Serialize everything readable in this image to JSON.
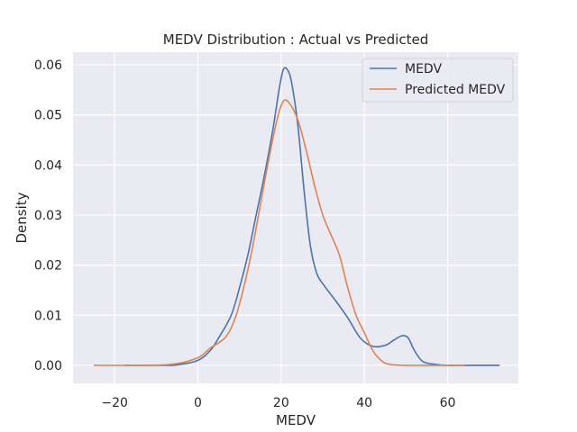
{
  "chart_data": {
    "type": "line",
    "title": "MEDV Distribution : Actual vs Predicted",
    "xlabel": "MEDV",
    "ylabel": "Density",
    "xlim": [
      -30,
      77
    ],
    "ylim": [
      -0.0036,
      0.0625
    ],
    "xticks": [
      -20,
      0,
      20,
      40,
      60
    ],
    "xtick_labels": [
      "−20",
      "0",
      "20",
      "40",
      "60"
    ],
    "yticks": [
      0.0,
      0.01,
      0.02,
      0.03,
      0.04,
      0.05,
      0.06
    ],
    "ytick_labels": [
      "0.00",
      "0.01",
      "0.02",
      "0.03",
      "0.04",
      "0.05",
      "0.06"
    ],
    "grid": true,
    "legend_position": "top-right",
    "series": [
      {
        "name": "MEDV",
        "color": "#4c72b0",
        "x": [
          -17.5,
          -10,
          -5,
          0,
          3,
          5,
          8,
          10,
          12,
          14,
          16,
          18,
          19.5,
          20.5,
          21.5,
          22.5,
          24,
          25.5,
          27,
          28.5,
          30,
          33,
          36,
          39,
          42,
          45,
          47,
          49,
          50.5,
          52,
          54,
          57,
          60,
          65,
          72.5
        ],
        "y": [
          0.0,
          0.0,
          0.0001,
          0.001,
          0.003,
          0.0055,
          0.01,
          0.0155,
          0.022,
          0.03,
          0.038,
          0.047,
          0.055,
          0.059,
          0.059,
          0.0565,
          0.048,
          0.035,
          0.024,
          0.0185,
          0.0163,
          0.013,
          0.0095,
          0.0055,
          0.0038,
          0.004,
          0.005,
          0.0059,
          0.0055,
          0.003,
          0.0008,
          0.0002,
          0.0,
          0.0,
          0.0
        ]
      },
      {
        "name": "Predicted MEDV",
        "color": "#dd8452",
        "x": [
          -25,
          -15,
          -8,
          -4,
          -1,
          1,
          3,
          5,
          7,
          9,
          11,
          13,
          15,
          17,
          19,
          20.5,
          22,
          24,
          26,
          28,
          30,
          32,
          34,
          36,
          38,
          40,
          42,
          44,
          46,
          50,
          55,
          60,
          64
        ],
        "y": [
          0.0,
          0.0,
          0.0001,
          0.0005,
          0.0012,
          0.002,
          0.0035,
          0.0045,
          0.006,
          0.0095,
          0.0155,
          0.023,
          0.032,
          0.041,
          0.049,
          0.0527,
          0.0523,
          0.049,
          0.043,
          0.036,
          0.03,
          0.026,
          0.022,
          0.0155,
          0.01,
          0.0065,
          0.003,
          0.001,
          0.0002,
          0.0,
          0.0,
          0.0,
          0.0
        ]
      }
    ]
  }
}
